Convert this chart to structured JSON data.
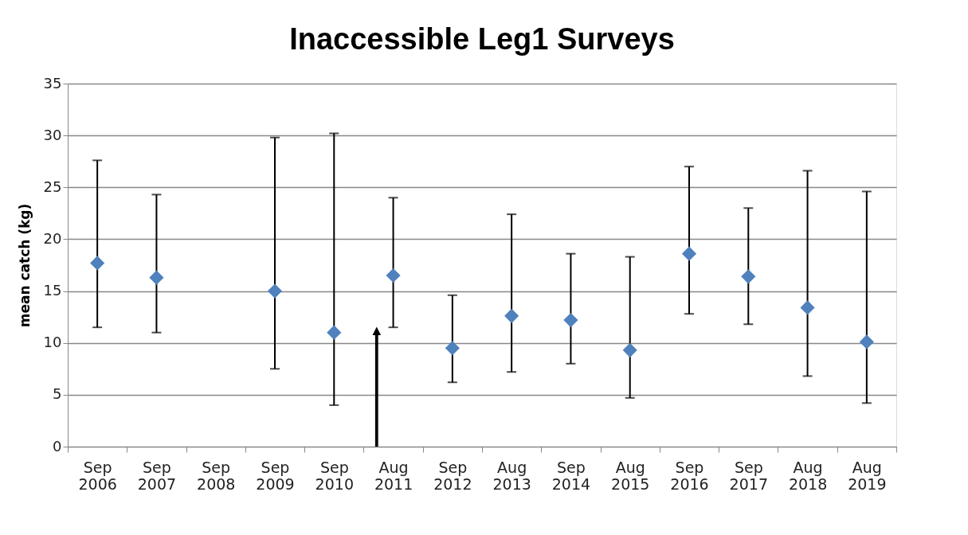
{
  "chart_data": {
    "type": "scatter",
    "title": "Inaccessible Leg1 Surveys",
    "ylabel": "mean catch (kg)",
    "categories": [
      "Sep 2006",
      "Sep 2007",
      "Sep 2008",
      "Sep 2009",
      "Sep 2010",
      "Aug 2011",
      "Sep 2012",
      "Aug 2013",
      "Sep 2014",
      "Aug 2015",
      "Sep 2016",
      "Sep 2017",
      "Aug 2018",
      "Aug 2019"
    ],
    "series": [
      {
        "color": "#4f81bd",
        "values": [
          17.7,
          16.3,
          null,
          15.0,
          11.0,
          16.5,
          9.5,
          12.6,
          12.2,
          9.3,
          18.6,
          16.4,
          13.4,
          10.1
        ],
        "errors": [
          [
            11.5,
            27.6
          ],
          [
            11.0,
            24.3
          ],
          null,
          [
            7.5,
            29.8
          ],
          [
            4.0,
            30.2
          ],
          [
            11.5,
            24.0
          ],
          [
            6.2,
            14.6
          ],
          [
            7.2,
            22.4
          ],
          [
            8.0,
            18.6
          ],
          [
            4.7,
            18.3
          ],
          [
            12.8,
            27.0
          ],
          [
            11.8,
            23.0
          ],
          [
            6.8,
            26.6
          ],
          [
            4.2,
            24.6
          ]
        ]
      }
    ],
    "ylim": [
      0,
      35
    ],
    "yticks": [
      0,
      5,
      10,
      15,
      20,
      25,
      30,
      35
    ],
    "grid": "y",
    "marker": "diamond",
    "legend": false
  }
}
